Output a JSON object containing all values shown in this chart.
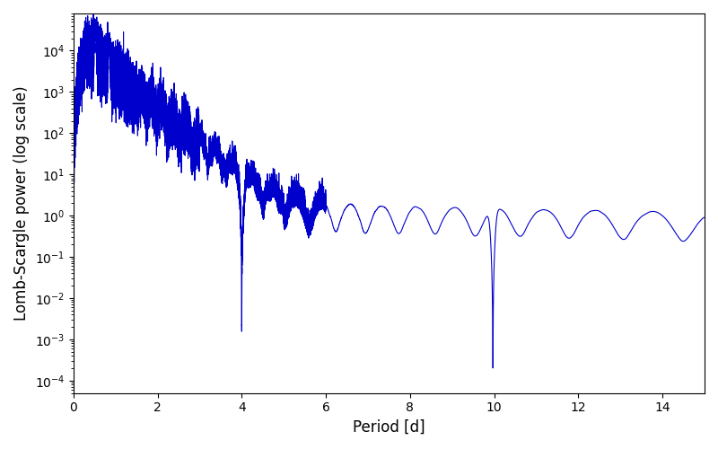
{
  "title": "",
  "xlabel": "Period [d]",
  "ylabel": "Lomb-Scargle power (log scale)",
  "xlim": [
    0,
    15
  ],
  "ylim_log": [
    5e-05,
    80000.0
  ],
  "line_color": "#0000cc",
  "line_width": 0.8,
  "yscale": "log",
  "figsize": [
    8.0,
    5.0
  ],
  "dpi": 100
}
